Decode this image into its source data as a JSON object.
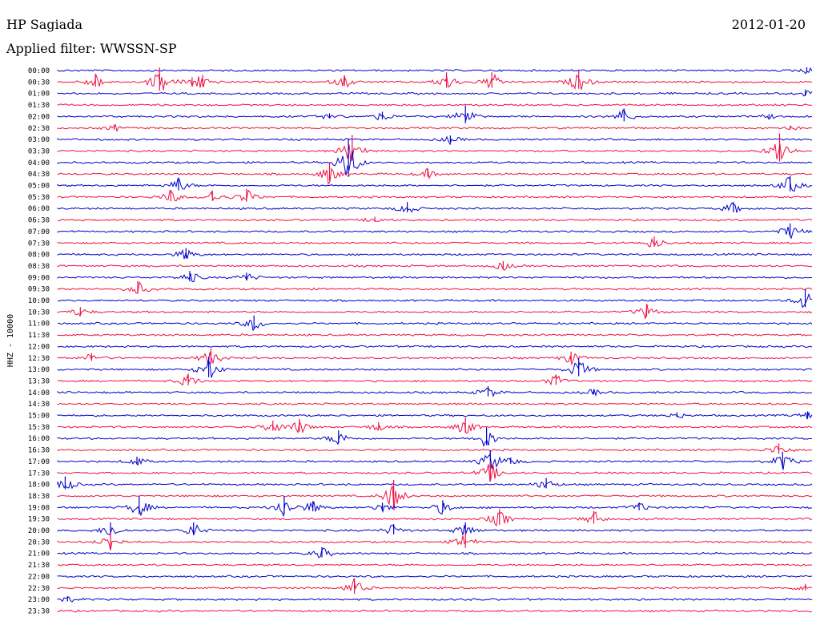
{
  "header": {
    "station": "HP Sagiada",
    "date": "2012-01-20",
    "filter": "Applied filter: WWSSN-SP"
  },
  "chart_data": {
    "type": "line",
    "subtype": "helicorder",
    "ylabel": "HHZ - 10000",
    "colors": [
      "#0000cc",
      "#ee1144"
    ],
    "rows": [
      {
        "label": "00:00",
        "events": [
          {
            "x": 0.992,
            "amp": 4
          }
        ]
      },
      {
        "label": "00:30",
        "events": [
          {
            "x": 0.05,
            "amp": 10
          },
          {
            "x": 0.135,
            "amp": 18
          },
          {
            "x": 0.178,
            "amp": 6
          },
          {
            "x": 0.192,
            "amp": 9
          },
          {
            "x": 0.38,
            "amp": 8
          },
          {
            "x": 0.515,
            "amp": 12
          },
          {
            "x": 0.575,
            "amp": 12
          },
          {
            "x": 0.69,
            "amp": 14
          }
        ]
      },
      {
        "label": "01:00",
        "events": [
          {
            "x": 0.99,
            "amp": 5
          }
        ]
      },
      {
        "label": "01:30",
        "events": []
      },
      {
        "label": "02:00",
        "events": [
          {
            "x": 0.36,
            "amp": 4
          },
          {
            "x": 0.43,
            "amp": 6
          },
          {
            "x": 0.54,
            "amp": 14
          },
          {
            "x": 0.75,
            "amp": 10
          },
          {
            "x": 0.942,
            "amp": 3
          }
        ]
      },
      {
        "label": "02:30",
        "events": [
          {
            "x": 0.075,
            "amp": 4
          },
          {
            "x": 0.97,
            "amp": 3
          }
        ]
      },
      {
        "label": "03:00",
        "events": [
          {
            "x": 0.52,
            "amp": 5
          }
        ]
      },
      {
        "label": "03:30",
        "events": [
          {
            "x": 0.39,
            "amp": 20
          },
          {
            "x": 0.956,
            "amp": 22
          }
        ]
      },
      {
        "label": "04:00",
        "events": [
          {
            "x": 0.385,
            "amp": 30
          }
        ]
      },
      {
        "label": "04:30",
        "events": [
          {
            "x": 0.36,
            "amp": 14
          },
          {
            "x": 0.49,
            "amp": 6
          }
        ]
      },
      {
        "label": "05:00",
        "events": [
          {
            "x": 0.16,
            "amp": 10
          },
          {
            "x": 0.97,
            "amp": 12
          }
        ]
      },
      {
        "label": "05:30",
        "events": [
          {
            "x": 0.15,
            "amp": 9
          },
          {
            "x": 0.205,
            "amp": 8
          },
          {
            "x": 0.25,
            "amp": 10
          }
        ]
      },
      {
        "label": "06:00",
        "events": [
          {
            "x": 0.463,
            "amp": 8
          },
          {
            "x": 0.895,
            "amp": 8
          }
        ]
      },
      {
        "label": "06:30",
        "events": [
          {
            "x": 0.42,
            "amp": 4
          }
        ]
      },
      {
        "label": "07:00",
        "events": [
          {
            "x": 0.97,
            "amp": 10
          }
        ]
      },
      {
        "label": "07:30",
        "events": [
          {
            "x": 0.79,
            "amp": 8
          }
        ]
      },
      {
        "label": "08:00",
        "events": [
          {
            "x": 0.17,
            "amp": 8
          }
        ]
      },
      {
        "label": "08:30",
        "events": [
          {
            "x": 0.59,
            "amp": 6
          }
        ]
      },
      {
        "label": "09:00",
        "events": [
          {
            "x": 0.175,
            "amp": 8
          },
          {
            "x": 0.25,
            "amp": 6
          }
        ]
      },
      {
        "label": "09:30",
        "events": [
          {
            "x": 0.106,
            "amp": 10
          }
        ]
      },
      {
        "label": "10:00",
        "events": [
          {
            "x": 0.99,
            "amp": 14
          }
        ]
      },
      {
        "label": "10:30",
        "events": [
          {
            "x": 0.03,
            "amp": 6
          },
          {
            "x": 0.78,
            "amp": 10
          }
        ]
      },
      {
        "label": "11:00",
        "events": [
          {
            "x": 0.26,
            "amp": 10
          }
        ]
      },
      {
        "label": "11:30",
        "events": []
      },
      {
        "label": "12:00",
        "events": []
      },
      {
        "label": "12:30",
        "events": [
          {
            "x": 0.045,
            "amp": 6
          },
          {
            "x": 0.203,
            "amp": 12
          },
          {
            "x": 0.68,
            "amp": 8
          }
        ]
      },
      {
        "label": "13:00",
        "events": [
          {
            "x": 0.2,
            "amp": 16
          },
          {
            "x": 0.69,
            "amp": 14
          }
        ]
      },
      {
        "label": "13:30",
        "events": [
          {
            "x": 0.173,
            "amp": 9
          },
          {
            "x": 0.66,
            "amp": 8
          }
        ]
      },
      {
        "label": "14:00",
        "events": [
          {
            "x": 0.57,
            "amp": 8
          },
          {
            "x": 0.71,
            "amp": 4
          }
        ]
      },
      {
        "label": "14:30",
        "events": []
      },
      {
        "label": "15:00",
        "events": [
          {
            "x": 0.82,
            "amp": 4
          },
          {
            "x": 0.993,
            "amp": 5
          }
        ]
      },
      {
        "label": "15:30",
        "events": [
          {
            "x": 0.285,
            "amp": 8
          },
          {
            "x": 0.32,
            "amp": 10
          },
          {
            "x": 0.425,
            "amp": 6
          },
          {
            "x": 0.54,
            "amp": 12
          }
        ]
      },
      {
        "label": "16:00",
        "events": [
          {
            "x": 0.372,
            "amp": 10
          },
          {
            "x": 0.568,
            "amp": 14
          }
        ]
      },
      {
        "label": "16:30",
        "events": [
          {
            "x": 0.955,
            "amp": 8
          }
        ]
      },
      {
        "label": "17:00",
        "events": [
          {
            "x": 0.105,
            "amp": 6
          },
          {
            "x": 0.573,
            "amp": 14
          },
          {
            "x": 0.6,
            "amp": 5
          },
          {
            "x": 0.96,
            "amp": 12
          }
        ]
      },
      {
        "label": "17:30",
        "events": [
          {
            "x": 0.573,
            "amp": 14
          }
        ]
      },
      {
        "label": "18:00",
        "events": [
          {
            "x": 0.01,
            "amp": 10
          },
          {
            "x": 0.647,
            "amp": 8
          }
        ]
      },
      {
        "label": "18:30",
        "events": [
          {
            "x": 0.445,
            "amp": 20
          }
        ]
      },
      {
        "label": "19:00",
        "events": [
          {
            "x": 0.108,
            "amp": 14
          },
          {
            "x": 0.3,
            "amp": 14
          },
          {
            "x": 0.338,
            "amp": 8
          },
          {
            "x": 0.43,
            "amp": 6
          },
          {
            "x": 0.51,
            "amp": 9
          },
          {
            "x": 0.77,
            "amp": 6
          }
        ]
      },
      {
        "label": "19:30",
        "events": [
          {
            "x": 0.585,
            "amp": 12
          },
          {
            "x": 0.71,
            "amp": 10
          }
        ]
      },
      {
        "label": "20:00",
        "events": [
          {
            "x": 0.07,
            "amp": 10
          },
          {
            "x": 0.18,
            "amp": 10
          },
          {
            "x": 0.445,
            "amp": 8
          },
          {
            "x": 0.54,
            "amp": 10
          }
        ]
      },
      {
        "label": "20:30",
        "events": [
          {
            "x": 0.07,
            "amp": 12
          },
          {
            "x": 0.54,
            "amp": 12
          }
        ]
      },
      {
        "label": "21:00",
        "events": [
          {
            "x": 0.35,
            "amp": 8
          }
        ]
      },
      {
        "label": "21:30",
        "events": []
      },
      {
        "label": "22:00",
        "events": []
      },
      {
        "label": "22:30",
        "events": [
          {
            "x": 0.393,
            "amp": 12
          },
          {
            "x": 0.99,
            "amp": 5
          }
        ]
      },
      {
        "label": "23:00",
        "events": [
          {
            "x": 0.013,
            "amp": 4
          }
        ]
      },
      {
        "label": "23:30",
        "events": []
      }
    ]
  }
}
